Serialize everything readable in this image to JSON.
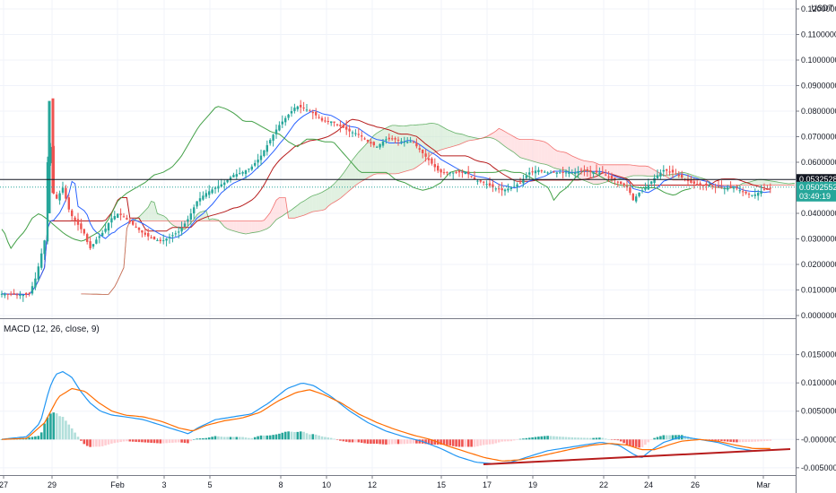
{
  "quote_currency": "USDT",
  "price_axis": {
    "ticks": [
      "0.1200000",
      "0.1100000",
      "0.1000000",
      "0.0900000",
      "0.0800000",
      "0.0700000",
      "0.0600000",
      "0.0400000",
      "0.0300000",
      "0.0200000",
      "0.0100000",
      "0.0000000"
    ],
    "last_price": "0.0532528",
    "current_price": "0.0502552",
    "countdown": "03:49:19"
  },
  "macd_axis": {
    "ticks": [
      "0.0150000",
      "0.0100000",
      "0.0050000",
      "-0.0000000",
      "-0.0050000"
    ]
  },
  "time_axis": {
    "ticks": [
      "27",
      "29",
      "Feb",
      "3",
      "5",
      "8",
      "10",
      "12",
      "15",
      "17",
      "19",
      "22",
      "24",
      "26",
      "Mar"
    ]
  },
  "macd_label": "MACD (12, 26, close, 9)",
  "colors": {
    "up": "#26a69a",
    "down": "#ef5350",
    "hist_up_strong": "#26a69a",
    "hist_up_weak": "#b2dfdb",
    "hist_down_strong": "#ef5350",
    "hist_down_weak": "#ffcdd2",
    "macd_line": "#2196f3",
    "signal_line": "#ff6d00",
    "conversion_line": "#2962ff",
    "base_line": "#b71c1c",
    "lagging_span": "#43a047",
    "kumo_bull": "#c8e6c9",
    "kumo_bear": "#ffcdd2",
    "trend_line": "#b71c1c"
  },
  "chart_data": [
    {
      "type": "candlestick",
      "ylim": [
        0,
        0.125
      ],
      "anchors": [
        [
          0,
          0.0085
        ],
        [
          32,
          0.008
        ],
        [
          40,
          0.015
        ],
        [
          50,
          0.03
        ],
        [
          55,
          0.08
        ],
        [
          58,
          0.05
        ],
        [
          62,
          0.045
        ],
        [
          70,
          0.05
        ],
        [
          78,
          0.04
        ],
        [
          86,
          0.036
        ],
        [
          94,
          0.032
        ],
        [
          100,
          0.026
        ],
        [
          108,
          0.03
        ],
        [
          116,
          0.033
        ],
        [
          124,
          0.038
        ],
        [
          132,
          0.04
        ],
        [
          140,
          0.038
        ],
        [
          150,
          0.035
        ],
        [
          160,
          0.032
        ],
        [
          170,
          0.03
        ],
        [
          180,
          0.029
        ],
        [
          190,
          0.031
        ],
        [
          200,
          0.033
        ],
        [
          210,
          0.038
        ],
        [
          220,
          0.045
        ],
        [
          230,
          0.048
        ],
        [
          240,
          0.05
        ],
        [
          250,
          0.052
        ],
        [
          260,
          0.055
        ],
        [
          270,
          0.056
        ],
        [
          280,
          0.058
        ],
        [
          290,
          0.062
        ],
        [
          300,
          0.068
        ],
        [
          310,
          0.074
        ],
        [
          320,
          0.078
        ],
        [
          330,
          0.082
        ],
        [
          340,
          0.081
        ],
        [
          350,
          0.079
        ],
        [
          360,
          0.076
        ],
        [
          370,
          0.076
        ],
        [
          380,
          0.074
        ],
        [
          390,
          0.072
        ],
        [
          400,
          0.071
        ],
        [
          410,
          0.068
        ],
        [
          420,
          0.066
        ],
        [
          430,
          0.069
        ],
        [
          440,
          0.069
        ],
        [
          450,
          0.068
        ],
        [
          460,
          0.068
        ],
        [
          470,
          0.064
        ],
        [
          480,
          0.06
        ],
        [
          490,
          0.056
        ],
        [
          500,
          0.056
        ],
        [
          510,
          0.056
        ],
        [
          520,
          0.056
        ],
        [
          530,
          0.053
        ],
        [
          540,
          0.052
        ],
        [
          550,
          0.05
        ],
        [
          560,
          0.049
        ],
        [
          570,
          0.05
        ],
        [
          580,
          0.052
        ],
        [
          590,
          0.056
        ],
        [
          600,
          0.057
        ],
        [
          610,
          0.056
        ],
        [
          620,
          0.056
        ],
        [
          630,
          0.056
        ],
        [
          640,
          0.056
        ],
        [
          650,
          0.057
        ],
        [
          660,
          0.056
        ],
        [
          670,
          0.056
        ],
        [
          680,
          0.054
        ],
        [
          690,
          0.052
        ],
        [
          700,
          0.05
        ],
        [
          706,
          0.045
        ],
        [
          712,
          0.048
        ],
        [
          720,
          0.05
        ],
        [
          730,
          0.054
        ],
        [
          740,
          0.057
        ],
        [
          750,
          0.056
        ],
        [
          760,
          0.054
        ],
        [
          770,
          0.052
        ],
        [
          780,
          0.051
        ],
        [
          790,
          0.051
        ],
        [
          800,
          0.05
        ],
        [
          810,
          0.05
        ],
        [
          820,
          0.05
        ],
        [
          830,
          0.048
        ],
        [
          840,
          0.047
        ],
        [
          850,
          0.049
        ],
        [
          862,
          0.05
        ]
      ]
    },
    {
      "type": "macd",
      "ylim": [
        -0.0055,
        0.017
      ],
      "macd_anchors": [
        [
          0,
          0.0
        ],
        [
          30,
          0.0005
        ],
        [
          45,
          0.003
        ],
        [
          55,
          0.009
        ],
        [
          62,
          0.0115
        ],
        [
          70,
          0.012
        ],
        [
          80,
          0.011
        ],
        [
          90,
          0.0085
        ],
        [
          100,
          0.0065
        ],
        [
          112,
          0.005
        ],
        [
          125,
          0.0043
        ],
        [
          140,
          0.004
        ],
        [
          160,
          0.0035
        ],
        [
          180,
          0.0025
        ],
        [
          200,
          0.0015
        ],
        [
          210,
          0.001
        ],
        [
          220,
          0.002
        ],
        [
          240,
          0.0035
        ],
        [
          260,
          0.004
        ],
        [
          280,
          0.0045
        ],
        [
          300,
          0.0065
        ],
        [
          320,
          0.009
        ],
        [
          337,
          0.01
        ],
        [
          350,
          0.0095
        ],
        [
          370,
          0.0075
        ],
        [
          390,
          0.005
        ],
        [
          410,
          0.003
        ],
        [
          430,
          0.0015
        ],
        [
          450,
          0.0005
        ],
        [
          470,
          -0.0003
        ],
        [
          490,
          -0.0015
        ],
        [
          510,
          -0.003
        ],
        [
          530,
          -0.004
        ],
        [
          550,
          -0.0043
        ],
        [
          570,
          -0.004
        ],
        [
          590,
          -0.003
        ],
        [
          610,
          -0.002
        ],
        [
          630,
          -0.0015
        ],
        [
          650,
          -0.001
        ],
        [
          670,
          -0.0005
        ],
        [
          690,
          -0.001
        ],
        [
          705,
          -0.0025
        ],
        [
          715,
          -0.0033
        ],
        [
          725,
          -0.002
        ],
        [
          740,
          -0.0005
        ],
        [
          760,
          0.0005
        ],
        [
          780,
          0.0
        ],
        [
          800,
          -0.0005
        ],
        [
          820,
          -0.0015
        ],
        [
          840,
          -0.002
        ],
        [
          862,
          -0.0018
        ]
      ],
      "signal_anchors": [
        [
          0,
          0.0
        ],
        [
          30,
          0.0002
        ],
        [
          50,
          0.003
        ],
        [
          65,
          0.0075
        ],
        [
          80,
          0.009
        ],
        [
          95,
          0.0085
        ],
        [
          110,
          0.0065
        ],
        [
          125,
          0.005
        ],
        [
          140,
          0.0043
        ],
        [
          160,
          0.004
        ],
        [
          180,
          0.0032
        ],
        [
          200,
          0.002
        ],
        [
          215,
          0.0015
        ],
        [
          230,
          0.0025
        ],
        [
          250,
          0.0033
        ],
        [
          270,
          0.0038
        ],
        [
          290,
          0.0048
        ],
        [
          310,
          0.0068
        ],
        [
          330,
          0.0083
        ],
        [
          345,
          0.0088
        ],
        [
          360,
          0.008
        ],
        [
          380,
          0.0065
        ],
        [
          400,
          0.0045
        ],
        [
          420,
          0.003
        ],
        [
          440,
          0.0018
        ],
        [
          460,
          0.0008
        ],
        [
          480,
          0.0
        ],
        [
          500,
          -0.0012
        ],
        [
          520,
          -0.0022
        ],
        [
          540,
          -0.0032
        ],
        [
          560,
          -0.0038
        ],
        [
          580,
          -0.0036
        ],
        [
          600,
          -0.003
        ],
        [
          620,
          -0.0023
        ],
        [
          640,
          -0.0016
        ],
        [
          660,
          -0.001
        ],
        [
          680,
          -0.0007
        ],
        [
          700,
          -0.001
        ],
        [
          715,
          -0.0018
        ],
        [
          730,
          -0.0018
        ],
        [
          745,
          -0.001
        ],
        [
          760,
          -0.0003
        ],
        [
          780,
          0.0
        ],
        [
          800,
          -0.0003
        ],
        [
          820,
          -0.001
        ],
        [
          840,
          -0.0016
        ],
        [
          862,
          -0.0016
        ]
      ]
    }
  ]
}
